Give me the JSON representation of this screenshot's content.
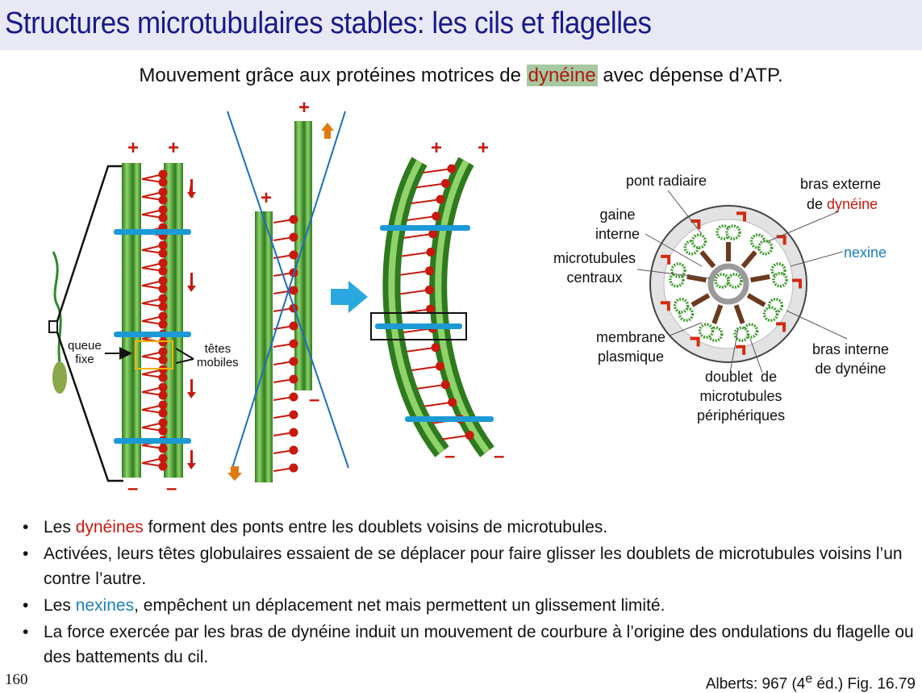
{
  "slide": {
    "title": "Structures microtubulaires stables: les cils et flagelles",
    "subtitle_before": "Mouvement grâce aux protéines motrices de ",
    "subtitle_highlight": "dynéine",
    "subtitle_after": " avec dépense d’ATP.",
    "page_number": "160",
    "reference_main": "Alberts: 967 (4",
    "reference_sup": "e",
    "reference_end": " éd.) Fig. 16.79"
  },
  "diagram": {
    "plus": "+",
    "minus": "–",
    "label_queue": "queue\nfixe",
    "label_tetes": "têtes\nmobiles",
    "label_pont_radiaire": "pont radiaire",
    "label_bras_externe_1": "bras externe",
    "label_bras_externe_2a": "de ",
    "label_bras_externe_2b": "dynéine",
    "label_gaine": "gaine\ninterne",
    "label_microtubules_centraux": "microtubules\ncentraux",
    "label_nexine": "nexine",
    "label_membrane": "membrane\nplasmique",
    "label_bras_interne": "bras interne\nde dynéine",
    "label_doublet": "doublet  de\nmicrotubules\npériphériques"
  },
  "bullets": [
    {
      "before": "Les ",
      "colored": "dynéines",
      "color": "#c8190e",
      "after": " forment des ponts entre les doublets voisins de microtubules."
    },
    {
      "before": "Activées, leurs têtes globulaires essaient de se déplacer pour faire glisser les doublets de microtubules voisins l’un contre l’autre.",
      "colored": "",
      "color": "",
      "after": ""
    },
    {
      "before": "Les ",
      "colored": "nexines",
      "color": "#1b7fc0",
      "after": ", empêchent un déplacement net mais permettent un glissement limité."
    },
    {
      "before": "La force exercée par les bras de dynéine induit un mouvement de courbure à l’origine des ondulations du flagelle ou des battements du cil.",
      "colored": "",
      "color": "",
      "after": ""
    }
  ],
  "colors": {
    "title": "#1a1a8c",
    "microtubule": "#3f9a2e",
    "dynein": "#c8190e",
    "nexin": "#1b9ad6",
    "arrow_orange": "#e07a10",
    "big_arrow": "#29a8e0"
  }
}
